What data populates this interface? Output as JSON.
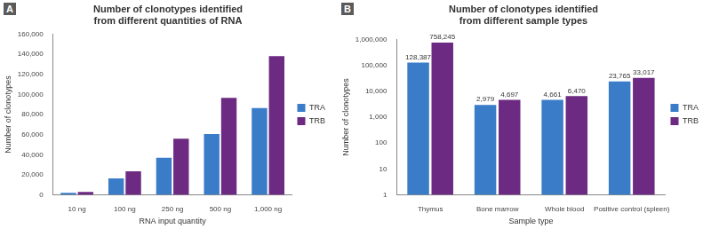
{
  "chart_data": [
    {
      "type": "bar",
      "annotations": [
        "A"
      ],
      "title": [
        "Number of clonotypes identified",
        "from different quantities of RNA"
      ],
      "x_label": "RNA input quantity",
      "y_label": "Number of clonotypes",
      "categories": [
        "10 ng",
        "100 ng",
        "250 ng",
        "500 ng",
        "1,000 ng"
      ],
      "series": [
        {
          "name": "TRA",
          "color": "#3a7cc7",
          "values": [
            2000,
            16500,
            37000,
            60500,
            86500
          ]
        },
        {
          "name": "TRB",
          "color": "#6d2a82",
          "values": [
            3000,
            23500,
            56000,
            96500,
            138000
          ]
        }
      ],
      "ylim": [
        0,
        160000
      ],
      "yticks": [
        0,
        {
          "value": 20000,
          "label": "20,000"
        },
        {
          "value": 40000,
          "label": "40,000"
        },
        {
          "value": 60000,
          "label": "60,000"
        },
        {
          "value": 80000,
          "label": "80,000"
        },
        {
          "value": 100000,
          "label": "100,000"
        },
        {
          "value": 120000,
          "label": "120,000"
        },
        {
          "value": 140000,
          "label": "140,000"
        },
        {
          "value": 160000,
          "label": "160,000"
        }
      ],
      "grid": false,
      "legend": "right"
    },
    {
      "type": "bar",
      "annotations": [
        "B"
      ],
      "title": [
        "Number of clonotypes identified",
        "from different sample types"
      ],
      "x_label": "Sample type",
      "y_label": "Number of clonotypes",
      "categories": [
        "Thymus",
        "Bone marrow",
        "Whole blood",
        "Positive control (spleen)"
      ],
      "series": [
        {
          "name": "TRA",
          "color": "#3a7cc7",
          "values": [
            128387,
            2979,
            4661,
            23765
          ],
          "value_labels": [
            "128,387",
            "2,979",
            "4,661",
            "23,765"
          ]
        },
        {
          "name": "TRB",
          "color": "#6d2a82",
          "values": [
            758245,
            4697,
            6470,
            33017
          ],
          "value_labels": [
            "758,245",
            "4,697",
            "6,470",
            "33,017"
          ]
        }
      ],
      "log": "y",
      "ylim": [
        1,
        1000000
      ],
      "yticks": [
        1,
        10,
        100,
        {
          "value": 1000,
          "label": "1,000"
        },
        {
          "value": 10000,
          "label": "10,000"
        },
        {
          "value": 100000,
          "label": "100,000"
        },
        {
          "value": 1000000,
          "label": "1,000,000"
        }
      ],
      "grid": false,
      "legend": "right",
      "data_labels": true
    }
  ]
}
